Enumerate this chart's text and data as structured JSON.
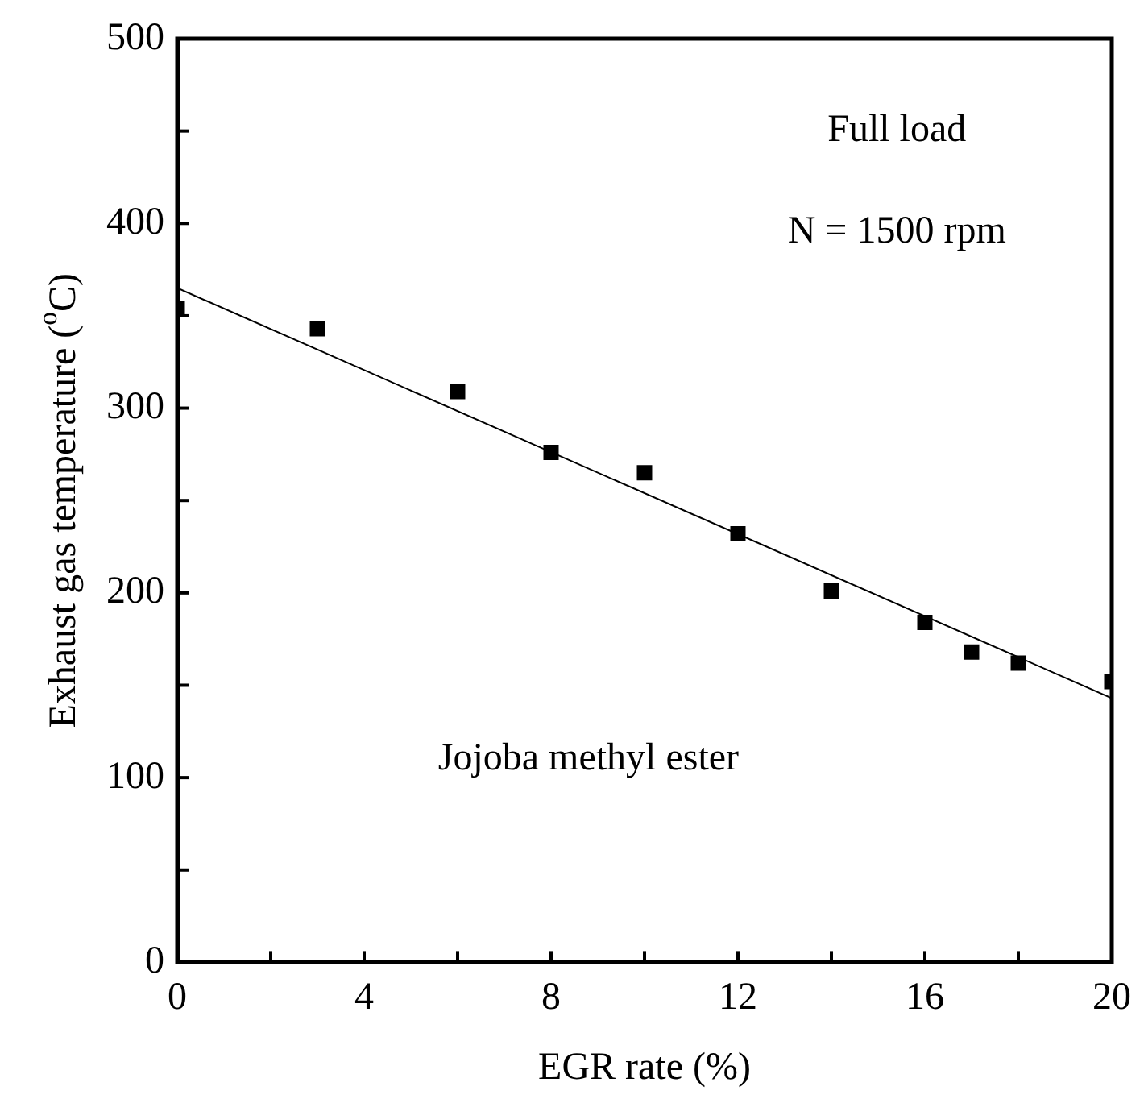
{
  "chart_data": {
    "type": "scatter",
    "xlabel": "EGR rate (%)",
    "ylabel": "Exhaust gas temperature ($^{o}$C)",
    "x": [
      0,
      3,
      6,
      8,
      10,
      12,
      14,
      16,
      17,
      18,
      20
    ],
    "series": [
      {
        "color": "#000000",
        "marker": "square",
        "values": [
          354,
          343,
          309,
          276,
          265,
          232,
          201,
          184,
          168,
          162,
          152
        ]
      },
      {
        "type": "line",
        "color": "#000000",
        "marker": "none",
        "line_style": "solid",
        "x": [
          0,
          20
        ],
        "values": [
          365,
          143
        ]
      }
    ],
    "xlim": [
      0,
      20
    ],
    "xticks": [
      0,
      {
        "value": 2,
        "label": null
      },
      4,
      {
        "value": 6,
        "label": null
      },
      8,
      {
        "value": 10,
        "label": null
      },
      12,
      {
        "value": 14,
        "label": null
      },
      16,
      {
        "value": 18,
        "label": null
      },
      20
    ],
    "ylim": [
      0,
      500
    ],
    "yticks": [
      0,
      {
        "value": 50,
        "label": null
      },
      100,
      {
        "value": 150,
        "label": null
      },
      200,
      {
        "value": 250,
        "label": null
      },
      300,
      {
        "value": 350,
        "label": null
      },
      400,
      {
        "value": 450,
        "label": null
      },
      500
    ],
    "grid": false,
    "legend": false,
    "annotations": [
      "Full load",
      "N = 1500 rpm",
      "Jojoba methyl ester"
    ]
  }
}
